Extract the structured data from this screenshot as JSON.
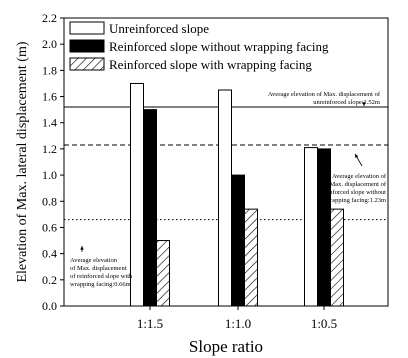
{
  "chart_data": {
    "type": "bar",
    "xlabel": "Slope ratio",
    "ylabel": "Elevation of Max.  lateral displacement (m)",
    "ylim": [
      0,
      2.2
    ],
    "yticks": [
      "0.0",
      "0.2",
      "0.4",
      "0.6",
      "0.8",
      "1.0",
      "1.2",
      "1.4",
      "1.6",
      "1.8",
      "2.0",
      "2.2"
    ],
    "categories": [
      "1:1.5",
      "1:1.0",
      "1:0.5"
    ],
    "series": [
      {
        "name": "Unreinforced slope",
        "values": [
          1.7,
          1.65,
          1.21
        ],
        "fill": "none"
      },
      {
        "name": "Reinforced slope without wrapping facing",
        "values": [
          1.5,
          1.0,
          1.2
        ],
        "fill": "solid"
      },
      {
        "name": "Reinforced slope with wrapping facing",
        "values": [
          0.5,
          0.74,
          0.74
        ],
        "fill": "hatch"
      }
    ],
    "reference_lines": [
      {
        "value": 1.52,
        "style": "solid"
      },
      {
        "value": 1.23,
        "style": "dashed"
      },
      {
        "value": 0.66,
        "style": "dotted"
      }
    ],
    "annotations": [
      {
        "lines": [
          "Average elevation of Max. displacement of",
          "unreinforced slope:1.52m"
        ]
      },
      {
        "lines": [
          "Average elevation of",
          "Max. displacement of",
          "reinforced slope without",
          "wrapping facing:1.23m"
        ]
      },
      {
        "lines": [
          "Average elevation",
          "of Max. displacement",
          "of reinforced slope with",
          "wrapping facing:0.66m"
        ]
      }
    ],
    "legend_position": "top-left",
    "grid": false
  }
}
